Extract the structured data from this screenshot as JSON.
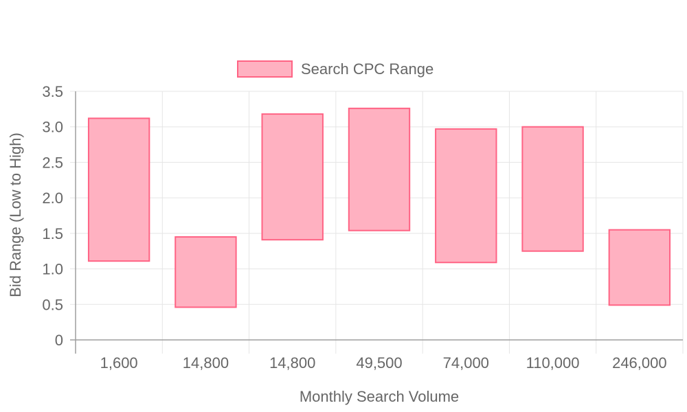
{
  "chart_data": {
    "type": "bar",
    "subtype": "floating-range",
    "categories": [
      "1,600",
      "14,800",
      "14,800",
      "49,500",
      "74,000",
      "110,000",
      "246,000"
    ],
    "series": [
      {
        "name": "Search CPC Range",
        "ranges": [
          [
            1.11,
            3.12
          ],
          [
            0.46,
            1.45
          ],
          [
            1.41,
            3.18
          ],
          [
            1.54,
            3.26
          ],
          [
            1.09,
            2.97
          ],
          [
            1.25,
            3.0
          ],
          [
            0.49,
            1.55
          ]
        ]
      }
    ],
    "xlabel": "Monthly Search Volume",
    "ylabel": "Bid Range (Low to High)",
    "ylim": [
      0,
      3.5
    ],
    "yticks": [
      "0",
      "0.5",
      "1.0",
      "1.5",
      "2.0",
      "2.5",
      "3.0",
      "3.5"
    ],
    "ytick_values": [
      0,
      0.5,
      1,
      1.5,
      2,
      2.5,
      3,
      3.5
    ],
    "grid": true,
    "legend_position": "top",
    "colors": {
      "fill": "#ffb1c1",
      "border": "#ff6384",
      "grid": "#e5e5e5",
      "axis": "#9e9e9e"
    }
  }
}
